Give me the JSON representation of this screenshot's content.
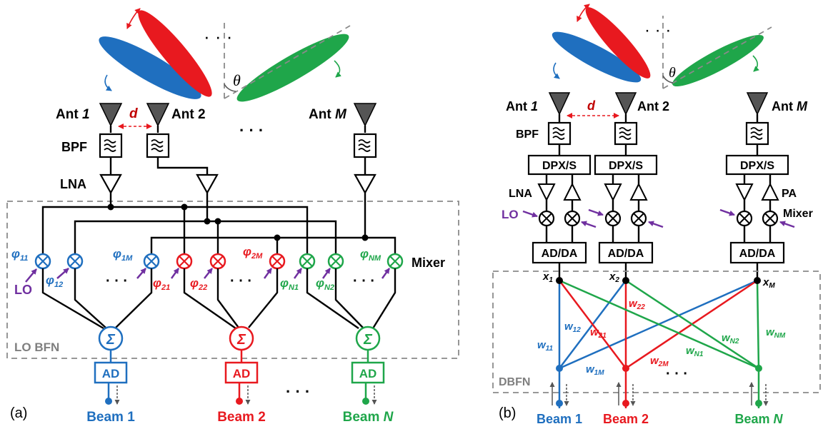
{
  "colors": {
    "blue": "#1f6fbf",
    "red": "#e8191f",
    "green": "#1fa64a",
    "purple": "#7030a0",
    "wire": "#000000",
    "dash": "#8a8a8a",
    "ant": "#555555"
  },
  "panel_a": {
    "caption": "(a)",
    "antennas": [
      {
        "prefix": "Ant ",
        "index": "1"
      },
      {
        "prefix": "Ant ",
        "index": "2"
      },
      {
        "prefix": "Ant ",
        "index": "M"
      }
    ],
    "spacing": "d",
    "theta": "θ",
    "bpf": "BPF",
    "lna": "LNA",
    "mixer": "Mixer",
    "lo": "LO",
    "dots": "· · ·",
    "phases": [
      {
        "sym": "φ",
        "sub": "11"
      },
      {
        "sym": "φ",
        "sub": "12"
      },
      {
        "sym": "φ",
        "sub": "1M"
      },
      {
        "sym": "φ",
        "sub": "21"
      },
      {
        "sym": "φ",
        "sub": "22"
      },
      {
        "sym": "φ",
        "sub": "2M"
      },
      {
        "sym": "φ",
        "sub": "N1"
      },
      {
        "sym": "φ",
        "sub": "N2"
      },
      {
        "sym": "φ",
        "sub": "NM"
      }
    ],
    "sum_symbol": "Σ",
    "ad": "AD",
    "network": "LO BFN",
    "beams": [
      {
        "prefix": "Beam ",
        "index": "1"
      },
      {
        "prefix": "Beam ",
        "index": "2"
      },
      {
        "prefix": "Beam ",
        "index": "N"
      }
    ]
  },
  "panel_b": {
    "caption": "(b)",
    "antennas": [
      {
        "prefix": "Ant ",
        "index": "1"
      },
      {
        "prefix": "Ant ",
        "index": "2"
      },
      {
        "prefix": "Ant ",
        "index": "M"
      }
    ],
    "spacing": "d",
    "theta": "θ",
    "bpf": "BPF",
    "dpx": "DPX/S",
    "lna": "LNA",
    "pa": "PA",
    "lo": "LO",
    "mixer": "Mixer",
    "adda": "AD/DA",
    "dots": "· · ·",
    "inputs": [
      {
        "sym": "x",
        "sub": "1"
      },
      {
        "sym": "x",
        "sub": "2"
      },
      {
        "sym": "x",
        "sub": "M"
      }
    ],
    "weights": [
      {
        "sym": "w",
        "sub": "11"
      },
      {
        "sym": "w",
        "sub": "12"
      },
      {
        "sym": "w",
        "sub": "1M"
      },
      {
        "sym": "w",
        "sub": "21"
      },
      {
        "sym": "w",
        "sub": "22"
      },
      {
        "sym": "w",
        "sub": "2M"
      },
      {
        "sym": "w",
        "sub": "N1"
      },
      {
        "sym": "w",
        "sub": "N2"
      },
      {
        "sym": "w",
        "sub": "NM"
      }
    ],
    "network": "DBFN",
    "beams": [
      {
        "prefix": "Beam ",
        "index": "1"
      },
      {
        "prefix": "Beam ",
        "index": "2"
      },
      {
        "prefix": "Beam ",
        "index": "N"
      }
    ]
  }
}
